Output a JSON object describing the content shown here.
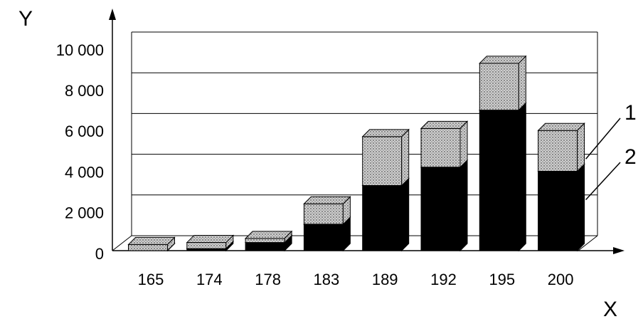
{
  "chart_data": {
    "type": "bar3d_stacked",
    "x_label": "X",
    "y_label": "Y",
    "categories": [
      "165",
      "174",
      "178",
      "183",
      "189",
      "192",
      "195",
      "200"
    ],
    "series": [
      {
        "name": "2",
        "color": "#000000",
        "values": [
          0,
          100,
          400,
          1300,
          3200,
          4100,
          6900,
          3900
        ]
      },
      {
        "name": "1",
        "color": "#cfcfcf",
        "values": [
          300,
          300,
          200,
          1000,
          2400,
          1900,
          2300,
          2000
        ]
      }
    ],
    "ylim": [
      0,
      10000
    ],
    "yticks": [
      0,
      {
        "value": 2000,
        "label": "2 000"
      },
      {
        "value": 4000,
        "label": "4 000"
      },
      {
        "value": 6000,
        "label": "6 000"
      },
      {
        "value": 8000,
        "label": "8 000"
      },
      {
        "value": 10000,
        "label": "10 000"
      }
    ],
    "grid": true
  }
}
